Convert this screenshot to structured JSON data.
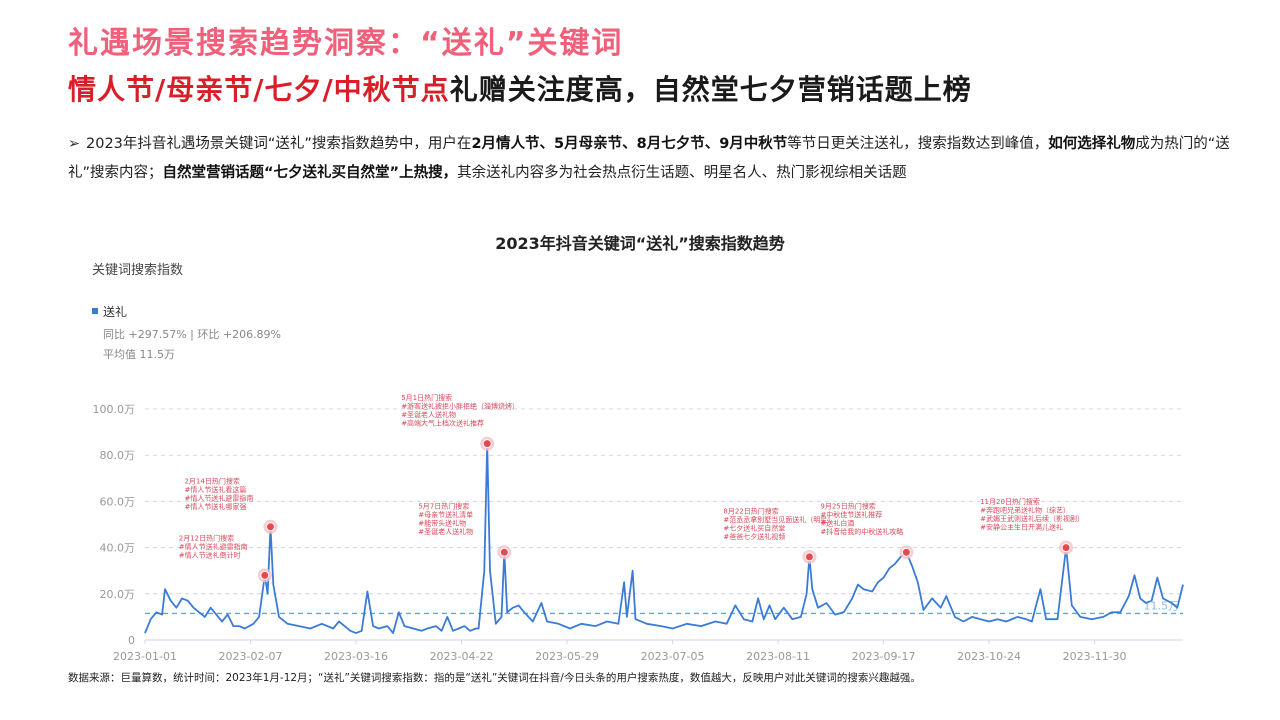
{
  "header": {
    "title_line1": "礼遇场景搜索趋势洞察：“送礼”关键词",
    "title_line2_highlight": "情人节/母亲节/七夕/中秋节点",
    "title_line2_rest": "礼赠关注度高，自然堂七夕营销话题上榜"
  },
  "summary": {
    "arrow": "➢",
    "segments": [
      {
        "text": "2023年抖音礼遇场景关键词“送礼”搜索指数趋势中，用户在",
        "bold": false
      },
      {
        "text": "2月情人节、5月母亲节、8月七夕节、9月中秋节",
        "bold": true
      },
      {
        "text": "等节日更关注送礼，搜索指数达到峰值，",
        "bold": false
      },
      {
        "text": "如何选择礼物",
        "bold": true
      },
      {
        "text": "成为热门的“送礼”搜索内容；",
        "bold": false
      },
      {
        "text": "自然堂营销话题“七夕送礼买自然堂”上热搜，",
        "bold": true
      },
      {
        "text": "其余送礼内容多为社会热点衍生话题、明星名人、热门影视综相关话题",
        "bold": false
      }
    ]
  },
  "chart_data": {
    "type": "line",
    "title": "2023年抖音关键词“送礼”搜索指数趋势",
    "ylabel": "关键词搜索指数",
    "legend": {
      "name": "送礼",
      "color": "#3a7bd5"
    },
    "stats": {
      "yoy_mom": "同比 +297.57% | 环比 +206.89%",
      "avg": "平均值 11.5万"
    },
    "avg_value": 11.5,
    "avg_label": "11.5万",
    "ylim": [
      0,
      100
    ],
    "yticks": [
      0,
      20,
      40,
      60,
      80,
      100
    ],
    "ytick_labels": [
      "0",
      "20.0万",
      "40.0万",
      "60.0万",
      "80.0万",
      "100.0万"
    ],
    "xlim": [
      "2023-01-01",
      "2023-12-31"
    ],
    "xticks": [
      "2023-01-01",
      "2023-02-07",
      "2023-03-16",
      "2023-04-22",
      "2023-05-29",
      "2023-07-05",
      "2023-08-11",
      "2023-09-17",
      "2023-10-24",
      "2023-11-30"
    ],
    "series": [
      {
        "name": "送礼",
        "color": "#3a7bd5",
        "points": [
          [
            "2023-01-01",
            3
          ],
          [
            "2023-01-03",
            9
          ],
          [
            "2023-01-05",
            12
          ],
          [
            "2023-01-07",
            11
          ],
          [
            "2023-01-08",
            22
          ],
          [
            "2023-01-10",
            17
          ],
          [
            "2023-01-12",
            14
          ],
          [
            "2023-01-14",
            18
          ],
          [
            "2023-01-16",
            17
          ],
          [
            "2023-01-18",
            14
          ],
          [
            "2023-01-20",
            12
          ],
          [
            "2023-01-22",
            10
          ],
          [
            "2023-01-24",
            14
          ],
          [
            "2023-01-26",
            11
          ],
          [
            "2023-01-28",
            8
          ],
          [
            "2023-01-30",
            11
          ],
          [
            "2023-02-01",
            6
          ],
          [
            "2023-02-03",
            6
          ],
          [
            "2023-02-05",
            5
          ],
          [
            "2023-02-08",
            7
          ],
          [
            "2023-02-10",
            10
          ],
          [
            "2023-02-12",
            28
          ],
          [
            "2023-02-13",
            20
          ],
          [
            "2023-02-14",
            49
          ],
          [
            "2023-02-15",
            24
          ],
          [
            "2023-02-17",
            10
          ],
          [
            "2023-02-20",
            7
          ],
          [
            "2023-02-24",
            6
          ],
          [
            "2023-02-28",
            5
          ],
          [
            "2023-03-04",
            7
          ],
          [
            "2023-03-08",
            5
          ],
          [
            "2023-03-10",
            8
          ],
          [
            "2023-03-12",
            6
          ],
          [
            "2023-03-14",
            4
          ],
          [
            "2023-03-16",
            3
          ],
          [
            "2023-03-18",
            4
          ],
          [
            "2023-03-20",
            21
          ],
          [
            "2023-03-22",
            6
          ],
          [
            "2023-03-24",
            5
          ],
          [
            "2023-03-27",
            6
          ],
          [
            "2023-03-29",
            3
          ],
          [
            "2023-03-31",
            12
          ],
          [
            "2023-04-02",
            6
          ],
          [
            "2023-04-05",
            5
          ],
          [
            "2023-04-08",
            4
          ],
          [
            "2023-04-10",
            5
          ],
          [
            "2023-04-13",
            6
          ],
          [
            "2023-04-15",
            4
          ],
          [
            "2023-04-17",
            10
          ],
          [
            "2023-04-19",
            4
          ],
          [
            "2023-04-21",
            5
          ],
          [
            "2023-04-23",
            6
          ],
          [
            "2023-04-25",
            4
          ],
          [
            "2023-04-27",
            5
          ],
          [
            "2023-04-28",
            5
          ],
          [
            "2023-04-30",
            30
          ],
          [
            "2023-05-01",
            85
          ],
          [
            "2023-05-02",
            30
          ],
          [
            "2023-05-04",
            7
          ],
          [
            "2023-05-06",
            10
          ],
          [
            "2023-05-07",
            38
          ],
          [
            "2023-05-08",
            12
          ],
          [
            "2023-05-10",
            14
          ],
          [
            "2023-05-12",
            15
          ],
          [
            "2023-05-14",
            12
          ],
          [
            "2023-05-17",
            8
          ],
          [
            "2023-05-20",
            16
          ],
          [
            "2023-05-22",
            8
          ],
          [
            "2023-05-26",
            7
          ],
          [
            "2023-05-30",
            5
          ],
          [
            "2023-06-03",
            7
          ],
          [
            "2023-06-08",
            6
          ],
          [
            "2023-06-12",
            8
          ],
          [
            "2023-06-16",
            7
          ],
          [
            "2023-06-18",
            25
          ],
          [
            "2023-06-19",
            10
          ],
          [
            "2023-06-21",
            30
          ],
          [
            "2023-06-22",
            9
          ],
          [
            "2023-06-26",
            7
          ],
          [
            "2023-07-01",
            6
          ],
          [
            "2023-07-05",
            5
          ],
          [
            "2023-07-10",
            7
          ],
          [
            "2023-07-15",
            6
          ],
          [
            "2023-07-20",
            8
          ],
          [
            "2023-07-24",
            7
          ],
          [
            "2023-07-27",
            15
          ],
          [
            "2023-07-30",
            9
          ],
          [
            "2023-08-02",
            8
          ],
          [
            "2023-08-04",
            18
          ],
          [
            "2023-08-06",
            9
          ],
          [
            "2023-08-08",
            15
          ],
          [
            "2023-08-10",
            9
          ],
          [
            "2023-08-13",
            14
          ],
          [
            "2023-08-16",
            9
          ],
          [
            "2023-08-19",
            10
          ],
          [
            "2023-08-21",
            20
          ],
          [
            "2023-08-22",
            36
          ],
          [
            "2023-08-23",
            22
          ],
          [
            "2023-08-25",
            14
          ],
          [
            "2023-08-28",
            16
          ],
          [
            "2023-08-31",
            11
          ],
          [
            "2023-09-03",
            12
          ],
          [
            "2023-09-06",
            18
          ],
          [
            "2023-09-08",
            24
          ],
          [
            "2023-09-10",
            22
          ],
          [
            "2023-09-13",
            21
          ],
          [
            "2023-09-15",
            25
          ],
          [
            "2023-09-17",
            27
          ],
          [
            "2023-09-19",
            31
          ],
          [
            "2023-09-21",
            33
          ],
          [
            "2023-09-23",
            36
          ],
          [
            "2023-09-25",
            38
          ],
          [
            "2023-09-27",
            32
          ],
          [
            "2023-09-29",
            25
          ],
          [
            "2023-10-01",
            13
          ],
          [
            "2023-10-04",
            18
          ],
          [
            "2023-10-07",
            14
          ],
          [
            "2023-10-09",
            19
          ],
          [
            "2023-10-12",
            10
          ],
          [
            "2023-10-15",
            8
          ],
          [
            "2023-10-18",
            10
          ],
          [
            "2023-10-21",
            9
          ],
          [
            "2023-10-24",
            8
          ],
          [
            "2023-10-27",
            9
          ],
          [
            "2023-10-30",
            8
          ],
          [
            "2023-11-03",
            10
          ],
          [
            "2023-11-06",
            9
          ],
          [
            "2023-11-08",
            8
          ],
          [
            "2023-11-11",
            22
          ],
          [
            "2023-11-13",
            9
          ],
          [
            "2023-11-17",
            9
          ],
          [
            "2023-11-20",
            40
          ],
          [
            "2023-11-22",
            15
          ],
          [
            "2023-11-25",
            10
          ],
          [
            "2023-11-29",
            9
          ],
          [
            "2023-12-03",
            10
          ],
          [
            "2023-12-06",
            12
          ],
          [
            "2023-12-09",
            12
          ],
          [
            "2023-12-12",
            19
          ],
          [
            "2023-12-14",
            28
          ],
          [
            "2023-12-16",
            18
          ],
          [
            "2023-12-18",
            16
          ],
          [
            "2023-12-20",
            17
          ],
          [
            "2023-12-22",
            27
          ],
          [
            "2023-12-24",
            18
          ],
          [
            "2023-12-27",
            16
          ],
          [
            "2023-12-29",
            14
          ],
          [
            "2023-12-31",
            24
          ]
        ]
      }
    ],
    "annotations": [
      {
        "date": "2023-02-12",
        "value": 28,
        "lines": [
          "2月12日热门搜索",
          "#情人节送礼避雷指南",
          "#情人节送礼倒计时"
        ]
      },
      {
        "date": "2023-02-14",
        "value": 49,
        "lines": [
          "2月14日热门搜索",
          "#情人节送礼看这篇",
          "#情人节送礼避雷指南",
          "#情人节送礼哪家强"
        ]
      },
      {
        "date": "2023-05-01",
        "value": 85,
        "lines": [
          "5月1日热门搜索",
          "#游客送礼被拒小胖拒绝（淄博烧烤）",
          "#圣诞老人送礼物",
          "#高端大气上档次送礼推荐"
        ]
      },
      {
        "date": "2023-05-07",
        "value": 38,
        "lines": [
          "5月7日热门搜索",
          "#母亲节送礼清单",
          "#能带头送礼物",
          "#圣诞老人送礼物"
        ]
      },
      {
        "date": "2023-08-22",
        "value": 36,
        "lines": [
          "8月22日热门搜索",
          "#范丞丞拿别墅当见面送礼（明星）",
          "#七夕送礼买自然堂",
          "#爸爸七夕送礼视频"
        ]
      },
      {
        "date": "2023-09-25",
        "value": 38,
        "lines": [
          "9月25日热门搜索",
          "#中秋佳节送礼推荐",
          "#送礼白酒",
          "#抖音给我的中秋送礼攻略"
        ]
      },
      {
        "date": "2023-11-20",
        "value": 40,
        "lines": [
          "11月20日热门搜索",
          "#奔跑吧兄弟送礼物（综艺）",
          "#武媚王武则送礼后续（影视剧）",
          "#安静公主生日开满儿送礼"
        ]
      }
    ]
  },
  "footnote": "数据来源：巨量算数，统计时间：2023年1月-12月；“送礼”关键词搜索指数：指的是“送礼”关键词在抖音/今日头条的用户搜索热度，数值越大，反映用户对此关键词的搜索兴趣越强。",
  "colors": {
    "accent_pink": "#f0607a",
    "accent_red": "#d81e28",
    "line_blue": "#3a7bd5",
    "annotation_text": "#d9485a"
  }
}
